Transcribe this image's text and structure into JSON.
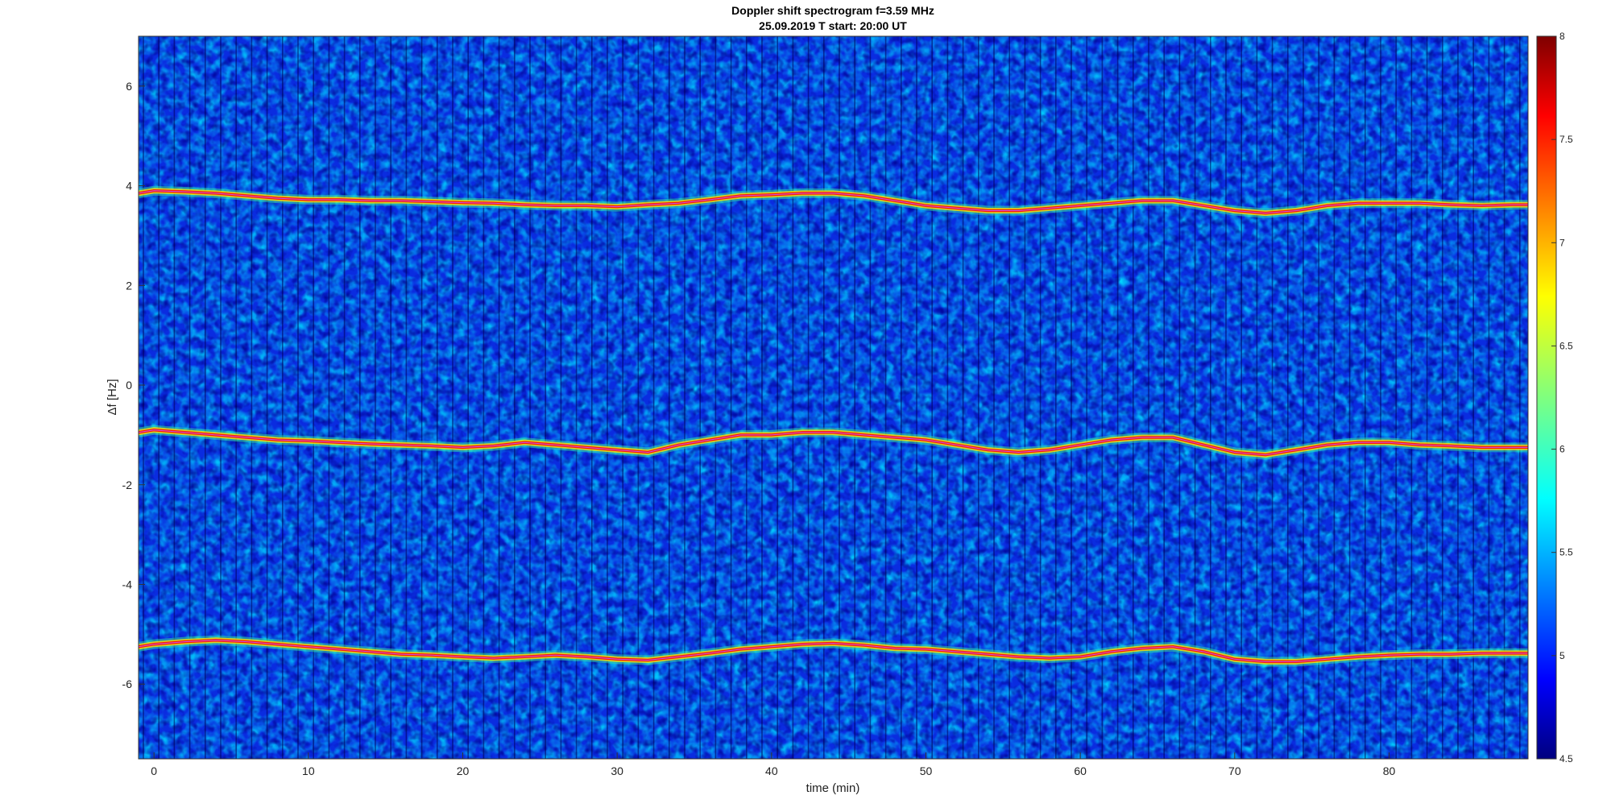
{
  "chart_data": {
    "type": "heatmap",
    "title": "Doppler shift spectrogram f=3.59 MHz",
    "subtitle": "25.09.2019   T start: 20:00 UT",
    "xlabel": "time (min)",
    "ylabel": "Δf [Hz]",
    "xlim": [
      -1,
      89
    ],
    "ylim": [
      -7.5,
      7
    ],
    "x_ticks": [
      0,
      10,
      20,
      30,
      40,
      50,
      60,
      70,
      80
    ],
    "y_ticks": [
      6,
      4,
      2,
      0,
      -2,
      -4,
      -6
    ],
    "colorbar": {
      "colormap": "jet",
      "range": [
        4.5,
        8
      ],
      "ticks": [
        "8",
        "7.5",
        "7",
        "6.5",
        "6",
        "5.5",
        "5",
        "4.5"
      ]
    },
    "background_level": 5.3,
    "series": [
      {
        "t": [
          -1,
          0,
          2,
          4,
          6,
          8,
          10,
          12,
          14,
          16,
          18,
          20,
          22,
          24,
          26,
          28,
          30,
          32,
          34,
          36,
          38,
          40,
          42,
          44,
          46,
          48,
          50,
          52,
          54,
          56,
          58,
          60,
          62,
          64,
          66,
          68,
          70,
          72,
          74,
          76,
          78,
          80,
          82,
          84,
          86,
          88,
          89
        ],
        "f": [
          3.85,
          3.9,
          3.88,
          3.85,
          3.8,
          3.75,
          3.72,
          3.72,
          3.7,
          3.7,
          3.68,
          3.66,
          3.65,
          3.62,
          3.6,
          3.6,
          3.58,
          3.62,
          3.65,
          3.72,
          3.8,
          3.82,
          3.85,
          3.85,
          3.8,
          3.7,
          3.6,
          3.55,
          3.5,
          3.5,
          3.55,
          3.6,
          3.65,
          3.7,
          3.7,
          3.6,
          3.5,
          3.45,
          3.5,
          3.6,
          3.65,
          3.65,
          3.65,
          3.62,
          3.6,
          3.62,
          3.62
        ]
      },
      {
        "t": [
          -1,
          0,
          2,
          4,
          6,
          8,
          10,
          12,
          14,
          16,
          18,
          20,
          22,
          24,
          26,
          28,
          30,
          32,
          34,
          36,
          38,
          40,
          42,
          44,
          46,
          48,
          50,
          52,
          54,
          56,
          58,
          60,
          62,
          64,
          66,
          68,
          70,
          72,
          74,
          76,
          78,
          80,
          82,
          84,
          86,
          88,
          89
        ],
        "f": [
          -0.95,
          -0.9,
          -0.95,
          -1.0,
          -1.05,
          -1.1,
          -1.12,
          -1.15,
          -1.18,
          -1.2,
          -1.22,
          -1.25,
          -1.22,
          -1.15,
          -1.2,
          -1.25,
          -1.3,
          -1.35,
          -1.2,
          -1.1,
          -1.0,
          -1.0,
          -0.95,
          -0.95,
          -1.0,
          -1.05,
          -1.1,
          -1.2,
          -1.3,
          -1.35,
          -1.3,
          -1.2,
          -1.1,
          -1.05,
          -1.05,
          -1.2,
          -1.35,
          -1.4,
          -1.3,
          -1.2,
          -1.15,
          -1.15,
          -1.2,
          -1.22,
          -1.25,
          -1.25,
          -1.25
        ]
      },
      {
        "t": [
          -1,
          0,
          2,
          4,
          6,
          8,
          10,
          12,
          14,
          16,
          18,
          20,
          22,
          24,
          26,
          28,
          30,
          32,
          34,
          36,
          38,
          40,
          42,
          44,
          46,
          48,
          50,
          52,
          54,
          56,
          58,
          60,
          62,
          64,
          66,
          68,
          70,
          72,
          74,
          76,
          78,
          80,
          82,
          84,
          86,
          88,
          89
        ],
        "f": [
          -5.25,
          -5.2,
          -5.15,
          -5.12,
          -5.15,
          -5.2,
          -5.25,
          -5.3,
          -5.35,
          -5.4,
          -5.42,
          -5.45,
          -5.48,
          -5.45,
          -5.42,
          -5.45,
          -5.5,
          -5.52,
          -5.45,
          -5.38,
          -5.3,
          -5.25,
          -5.2,
          -5.18,
          -5.22,
          -5.28,
          -5.3,
          -5.35,
          -5.4,
          -5.45,
          -5.48,
          -5.45,
          -5.35,
          -5.28,
          -5.25,
          -5.35,
          -5.5,
          -5.55,
          -5.55,
          -5.5,
          -5.45,
          -5.42,
          -5.4,
          -5.4,
          -5.38,
          -5.38,
          -5.38
        ]
      }
    ]
  }
}
